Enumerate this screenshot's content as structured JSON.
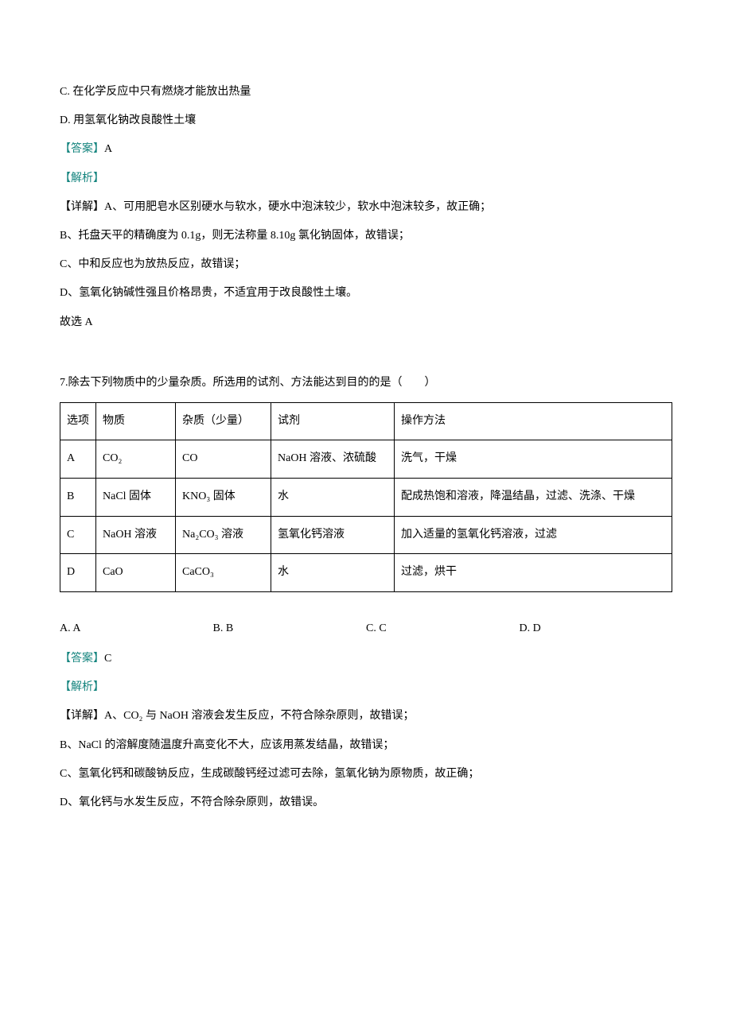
{
  "colors": {
    "tealLabel": "#14847e",
    "text": "#000000",
    "background": "#ffffff",
    "border": "#000000"
  },
  "typography": {
    "bodyFontSize": 14,
    "lineHeight": 2.3,
    "fontFamily": "SimSun"
  },
  "q6_tail": {
    "optionC": "C. 在化学反应中只有燃烧才能放出热量",
    "optionD": "D. 用氢氧化钠改良酸性土壤",
    "answerLabel": "【答案】",
    "answerValue": "A",
    "analysisLabel": "【解析】",
    "detailLabel": "【详解】",
    "detailA": "A、可用肥皂水区别硬水与软水，硬水中泡沫较少，软水中泡沫较多，故正确；",
    "detailB": "B、托盘天平的精确度为 0.1g，则无法称量 8.10g 氯化钠固体，故错误；",
    "detailC": "C、中和反应也为放热反应，故错误；",
    "detailD": "D、氢氧化钠碱性强且价格昂贵，不适宜用于改良酸性土壤。",
    "conclusion": "故选 A"
  },
  "q7": {
    "stem": "7.除去下列物质中的少量杂质。所选用的试剂、方法能达到目的的是（　　）",
    "table": {
      "headers": {
        "opt": "选项",
        "substance": "物质",
        "impurity": "杂质（少量）",
        "reagent": "试剂",
        "method": "操作方法"
      },
      "rows": [
        {
          "opt": "A",
          "substance": "CO₂",
          "impurity": "CO",
          "reagent": "NaOH 溶液、浓硫酸",
          "method": "洗气，干燥"
        },
        {
          "opt": "B",
          "substance": "NaCl 固体",
          "impurity": "KNO₃ 固体",
          "reagent": "水",
          "method": "配成热饱和溶液，降温结晶，过滤、洗涤、干燥"
        },
        {
          "opt": "C",
          "substance": "NaOH 溶液",
          "impurity": "Na₂CO₃ 溶液",
          "reagent": "氢氧化钙溶液",
          "method": "加入适量的氢氧化钙溶液，过滤"
        },
        {
          "opt": "D",
          "substance": "CaO",
          "impurity": "CaCO₃",
          "reagent": "水",
          "method": "过滤，烘干"
        }
      ]
    },
    "options": {
      "A": "A. A",
      "B": "B. B",
      "C": "C. C",
      "D": "D. D"
    },
    "answerLabel": "【答案】",
    "answerValue": "C",
    "analysisLabel": "【解析】",
    "detailLabel": "【详解】",
    "detailA": "A、CO₂ 与 NaOH 溶液会发生反应，不符合除杂原则，故错误；",
    "detailB": "B、NaCl 的溶解度随温度升高变化不大，应该用蒸发结晶，故错误；",
    "detailC": "C、氢氧化钙和碳酸钠反应，生成碳酸钙经过滤可去除，氢氧化钠为原物质，故正确；",
    "detailD": "D、氧化钙与水发生反应，不符合除杂原则，故错误。"
  }
}
